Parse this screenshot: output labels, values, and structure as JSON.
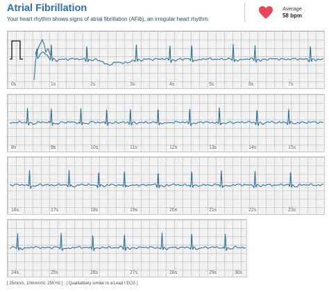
{
  "header": {
    "title": "Atrial Fibrillation",
    "subtitle": "Your heart rhythm shows signs of atrial fibrillation (AFib), an irregular heart rhythm.",
    "average_label": "Average",
    "average_value": "58 bpm",
    "heart_icon": "heart-icon",
    "heart_color": "#e8475b"
  },
  "colors": {
    "trace": "#2f6e9a",
    "grid": "#e3e3e3"
  },
  "strips": [
    {
      "ticks": [
        "0s",
        "1s",
        "2s",
        "3s",
        "4s",
        "5s",
        "6s",
        "7s"
      ]
    },
    {
      "ticks": [
        "8s",
        "9s",
        "10s",
        "11s",
        "12s",
        "13s",
        "14s",
        "15s"
      ]
    },
    {
      "ticks": [
        "16s",
        "17s",
        "18s",
        "19s",
        "20s",
        "21s",
        "22s",
        "23s"
      ]
    },
    {
      "ticks": [
        "24s",
        "25s",
        "26s",
        "27s",
        "28s",
        "29s",
        "30s"
      ]
    }
  ],
  "footer": "[ 25mm/s, 10mm/mV, 250 Hz ] : [ Qualitatively similar to a Lead I ECG ]"
}
